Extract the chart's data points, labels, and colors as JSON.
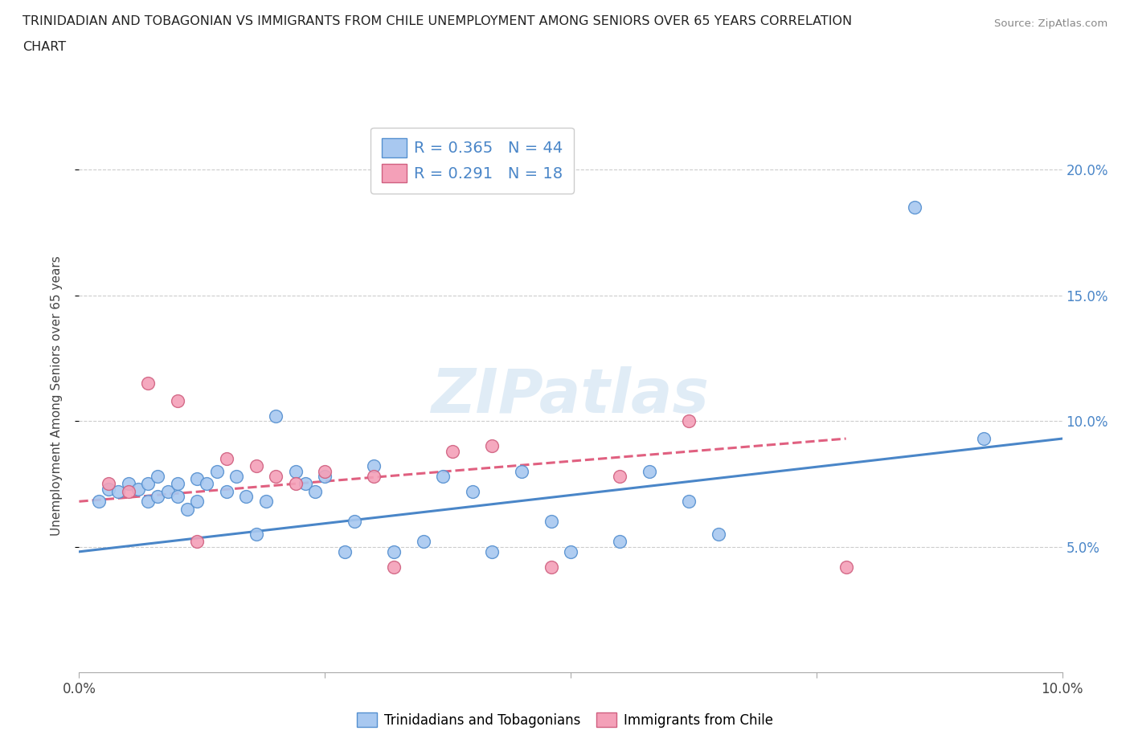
{
  "title_line1": "TRINIDADIAN AND TOBAGONIAN VS IMMIGRANTS FROM CHILE UNEMPLOYMENT AMONG SENIORS OVER 65 YEARS CORRELATION",
  "title_line2": "CHART",
  "source": "Source: ZipAtlas.com",
  "ylabel": "Unemployment Among Seniors over 65 years",
  "xlim": [
    0.0,
    0.1
  ],
  "ylim": [
    0.0,
    0.22
  ],
  "xticks": [
    0.0,
    0.025,
    0.05,
    0.075,
    0.1
  ],
  "xtick_labels": [
    "0.0%",
    "",
    "",
    "",
    "10.0%"
  ],
  "yticks": [
    0.05,
    0.1,
    0.15,
    0.2
  ],
  "ytick_labels": [
    "5.0%",
    "10.0%",
    "15.0%",
    "20.0%"
  ],
  "watermark": "ZIPatlas",
  "blue_R": 0.365,
  "blue_N": 44,
  "pink_R": 0.291,
  "pink_N": 18,
  "blue_color": "#a8c8f0",
  "pink_color": "#f4a0b8",
  "blue_edge_color": "#5590d0",
  "pink_edge_color": "#d06080",
  "blue_line_color": "#4a86c8",
  "pink_line_color": "#e06080",
  "legend_label_blue": "Trinidadians and Tobagonians",
  "legend_label_pink": "Immigrants from Chile",
  "blue_points_x": [
    0.002,
    0.003,
    0.004,
    0.005,
    0.006,
    0.007,
    0.007,
    0.008,
    0.008,
    0.009,
    0.01,
    0.01,
    0.011,
    0.012,
    0.012,
    0.013,
    0.014,
    0.015,
    0.016,
    0.017,
    0.018,
    0.019,
    0.02,
    0.022,
    0.023,
    0.024,
    0.025,
    0.027,
    0.028,
    0.03,
    0.032,
    0.035,
    0.037,
    0.04,
    0.042,
    0.045,
    0.048,
    0.05,
    0.055,
    0.058,
    0.062,
    0.065,
    0.085,
    0.092
  ],
  "blue_points_y": [
    0.068,
    0.073,
    0.072,
    0.075,
    0.073,
    0.075,
    0.068,
    0.07,
    0.078,
    0.072,
    0.075,
    0.07,
    0.065,
    0.077,
    0.068,
    0.075,
    0.08,
    0.072,
    0.078,
    0.07,
    0.055,
    0.068,
    0.102,
    0.08,
    0.075,
    0.072,
    0.078,
    0.048,
    0.06,
    0.082,
    0.048,
    0.052,
    0.078,
    0.072,
    0.048,
    0.08,
    0.06,
    0.048,
    0.052,
    0.08,
    0.068,
    0.055,
    0.185,
    0.093
  ],
  "pink_points_x": [
    0.003,
    0.005,
    0.007,
    0.01,
    0.012,
    0.015,
    0.018,
    0.02,
    0.022,
    0.025,
    0.03,
    0.032,
    0.038,
    0.042,
    0.048,
    0.055,
    0.062,
    0.078
  ],
  "pink_points_y": [
    0.075,
    0.072,
    0.115,
    0.108,
    0.052,
    0.085,
    0.082,
    0.078,
    0.075,
    0.08,
    0.078,
    0.042,
    0.088,
    0.09,
    0.042,
    0.078,
    0.1,
    0.042
  ],
  "blue_trend_x0": 0.0,
  "blue_trend_x1": 0.1,
  "blue_trend_y0": 0.048,
  "blue_trend_y1": 0.093,
  "pink_trend_x0": 0.0,
  "pink_trend_x1": 0.078,
  "pink_trend_y0": 0.068,
  "pink_trend_y1": 0.093
}
